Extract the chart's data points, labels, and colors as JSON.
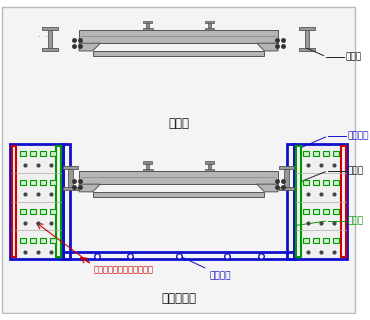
{
  "title_top": "工事桁",
  "title_bottom": "本設利用桁",
  "label_koji": "工事桁",
  "label_maisu": "埋設型枠",
  "label_hosho": "補強桁",
  "label_concrete": "高流動コンクリート充てん",
  "bg_color": "#f0f0f0",
  "beam_fill": "#b5b5b5",
  "beam_edge": "#555555",
  "frame_blue": "#1010cc",
  "frame_green": "#009900",
  "frame_red": "#cc0000",
  "annotation_red": "#cc0000",
  "text_blue": "#1010cc",
  "text_green": "#009900",
  "text_black": "#111111",
  "white": "#ffffff",
  "gray_light": "#f2f2f2",
  "col_bg": "#e8e8e8"
}
